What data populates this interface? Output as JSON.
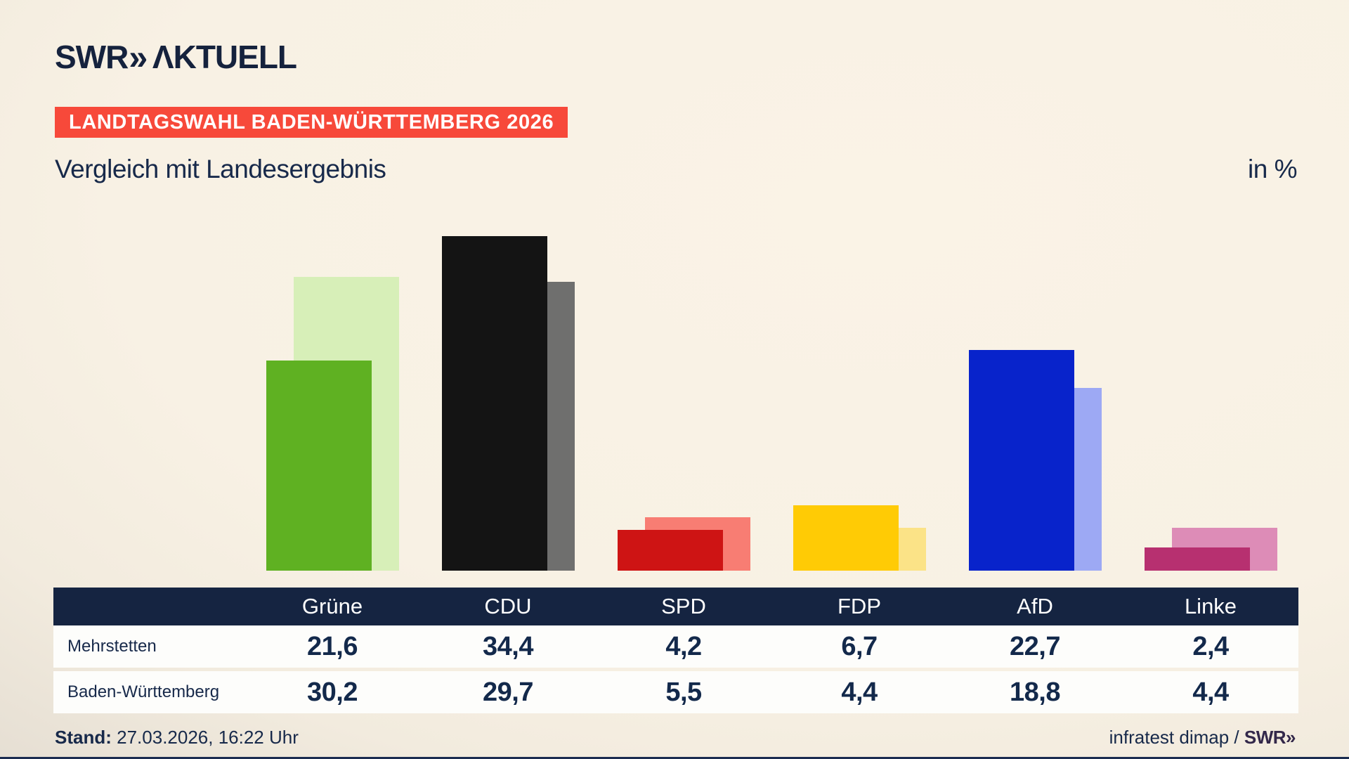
{
  "header": {
    "logo": {
      "swr": "SWR",
      "chevrons": "»",
      "aktuell": "ΛKTUELL"
    },
    "badge": "LANDTAGSWAHL BADEN-WÜRTTEMBERG 2026",
    "title": "Vergleich mit Landesergebnis",
    "unit": "in %"
  },
  "colors": {
    "badge_bg": "#f7493a",
    "text_navy": "#17294a",
    "table_header_bg": "#152441",
    "bottom_accent": "#1b2c50"
  },
  "chart_data": {
    "type": "bar",
    "title": "Vergleich mit Landesergebnis",
    "unit": "in %",
    "categories": [
      "Grüne",
      "CDU",
      "SPD",
      "FDP",
      "AfD",
      "Linke"
    ],
    "series": [
      {
        "name": "Mehrstetten",
        "key": "mehrstetten",
        "values": [
          21.6,
          34.4,
          4.2,
          6.7,
          22.7,
          2.4
        ],
        "colors": [
          "#5fb122",
          "#141414",
          "#ce1414",
          "#ffcb05",
          "#0823cb",
          "#b73070"
        ]
      },
      {
        "name": "Baden-Württemberg",
        "key": "baden-wuerttemberg",
        "values": [
          30.2,
          29.7,
          5.5,
          4.4,
          18.8,
          4.4
        ],
        "colors": [
          "#d7efb8",
          "#6f6f6e",
          "#f87d73",
          "#fbe387",
          "#9da9f4",
          "#dd8cb7"
        ]
      }
    ],
    "ylim": [
      0,
      36
    ],
    "grid": false,
    "legend": "table-below"
  },
  "table": {
    "columns": [
      "Grüne",
      "CDU",
      "SPD",
      "FDP",
      "AfD",
      "Linke"
    ],
    "rows": [
      {
        "label": "Mehrstetten",
        "values": [
          "21,6",
          "34,4",
          "4,2",
          "6,7",
          "22,7",
          "2,4"
        ]
      },
      {
        "label": "Baden-Württemberg",
        "values": [
          "30,2",
          "29,7",
          "5,5",
          "4,4",
          "18,8",
          "4,4"
        ]
      }
    ]
  },
  "footer": {
    "stand_label": "Stand:",
    "stand_value": "27.03.2026, 16:22 Uhr",
    "source": "infratest dimap /",
    "source_logo": "SWR»"
  }
}
